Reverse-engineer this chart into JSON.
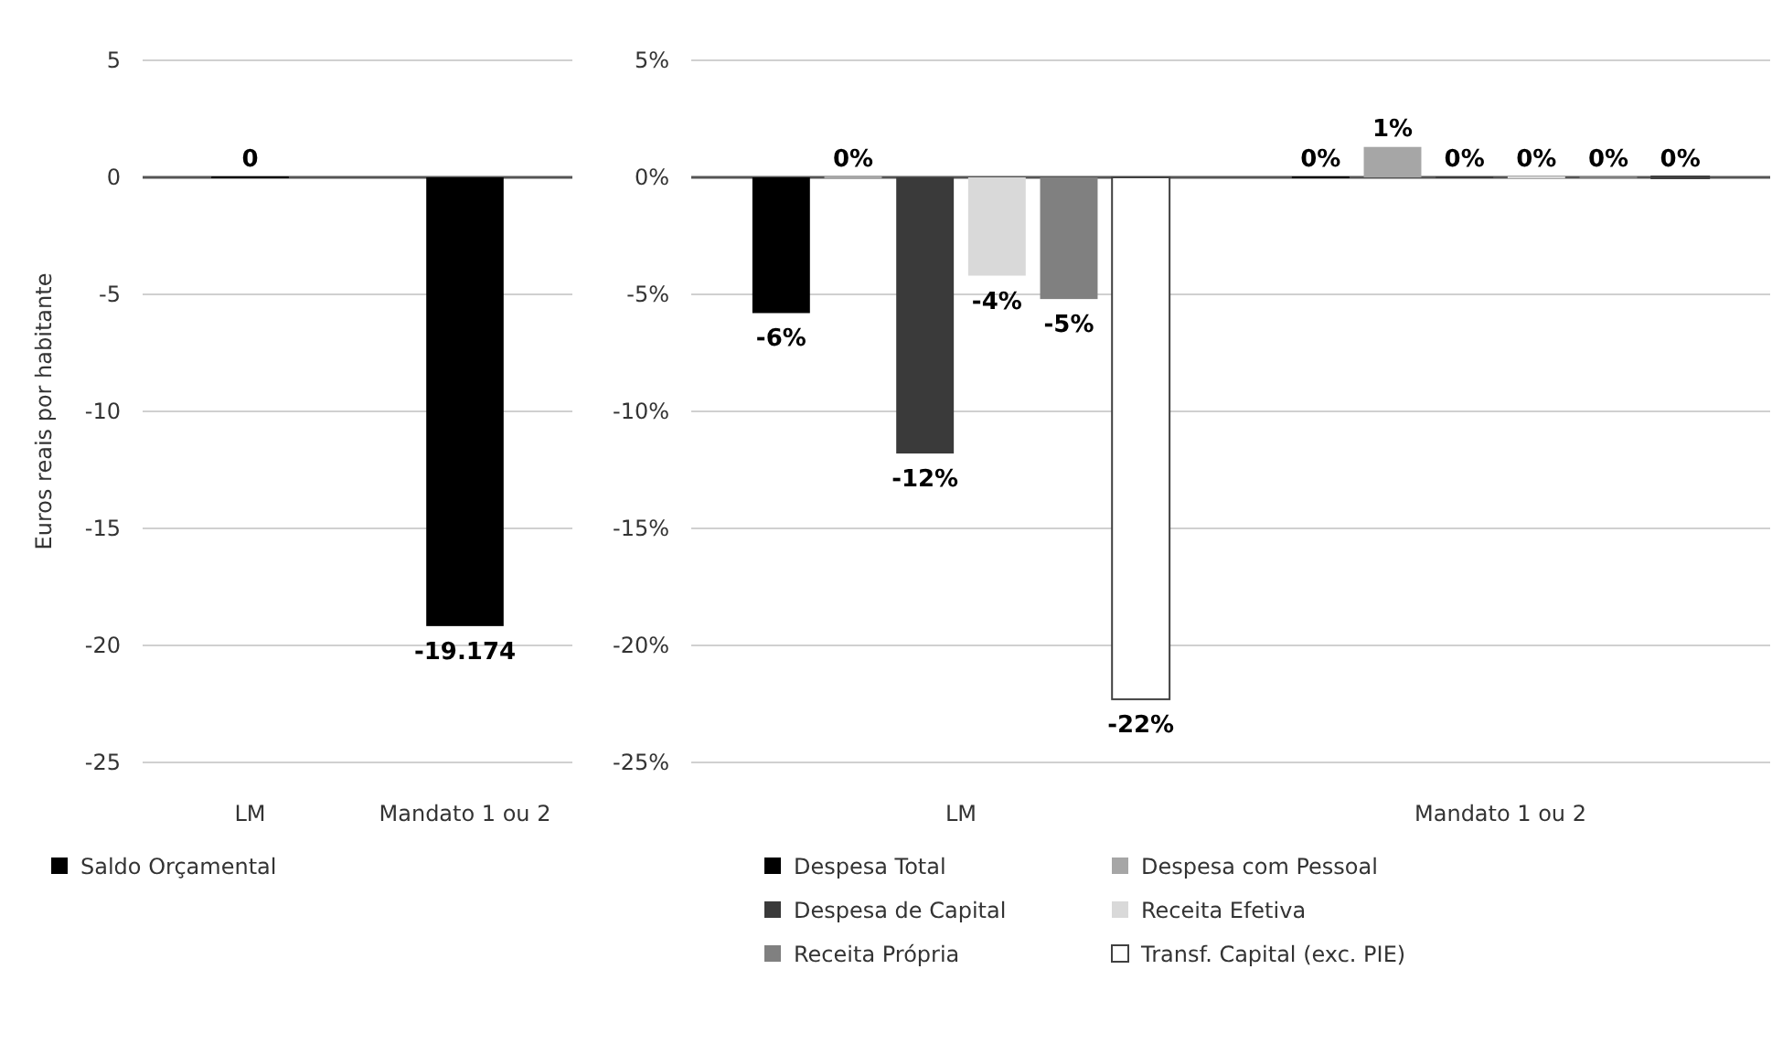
{
  "chart_data": [
    {
      "type": "bar",
      "ylabel": "Euros reais por habitante",
      "categories": [
        "LM",
        "Mandato 1 ou 2"
      ],
      "series": [
        {
          "name": "Saldo Orçamental",
          "color": "#000000",
          "values": [
            0,
            -19.174
          ]
        }
      ],
      "ylim": [
        -25,
        5
      ],
      "yticks": [
        5,
        0,
        -5,
        -10,
        -15,
        -20,
        -25
      ],
      "grid": "y",
      "legend": "bottom",
      "data_labels": true
    },
    {
      "type": "bar",
      "categories": [
        "LM",
        "Mandato 1 ou 2"
      ],
      "series": [
        {
          "name": "Despesa Total",
          "color": "#000000",
          "values": [
            -5.8,
            0
          ],
          "value_labels": [
            "-6%",
            "0%"
          ]
        },
        {
          "name": "Despesa com Pessoal",
          "color": "#a6a6a6",
          "values": [
            0,
            1.3
          ],
          "value_labels": [
            "0%",
            "1%"
          ]
        },
        {
          "name": "Despesa de Capital",
          "color": "#3a3a3a",
          "values": [
            -11.8,
            0
          ],
          "value_labels": [
            "-12%",
            "0%"
          ]
        },
        {
          "name": "Receita Efetiva",
          "color": "#d9d9d9",
          "values": [
            -4.2,
            0
          ],
          "value_labels": [
            "-4%",
            "0%"
          ]
        },
        {
          "name": "Receita Própria",
          "color": "#808080",
          "values": [
            -5.2,
            0
          ],
          "value_labels": [
            "-5%",
            "0%"
          ]
        },
        {
          "name": "Transf. Capital (exc. PIE)",
          "color": "#ffffff",
          "values": [
            -22.3,
            0
          ],
          "value_labels": [
            "-22%",
            "0%"
          ]
        }
      ],
      "ylim": [
        -25,
        5
      ],
      "yticks": [
        {
          "value": 5,
          "label": "5%"
        },
        {
          "value": 0,
          "label": "0%"
        },
        {
          "value": -5,
          "label": "-5%"
        },
        {
          "value": -10,
          "label": "-10%"
        },
        {
          "value": -15,
          "label": "-15%"
        },
        {
          "value": -20,
          "label": "-20%"
        },
        {
          "value": -25,
          "label": "-25%"
        }
      ],
      "grid": "y",
      "legend": "bottom"
    }
  ]
}
